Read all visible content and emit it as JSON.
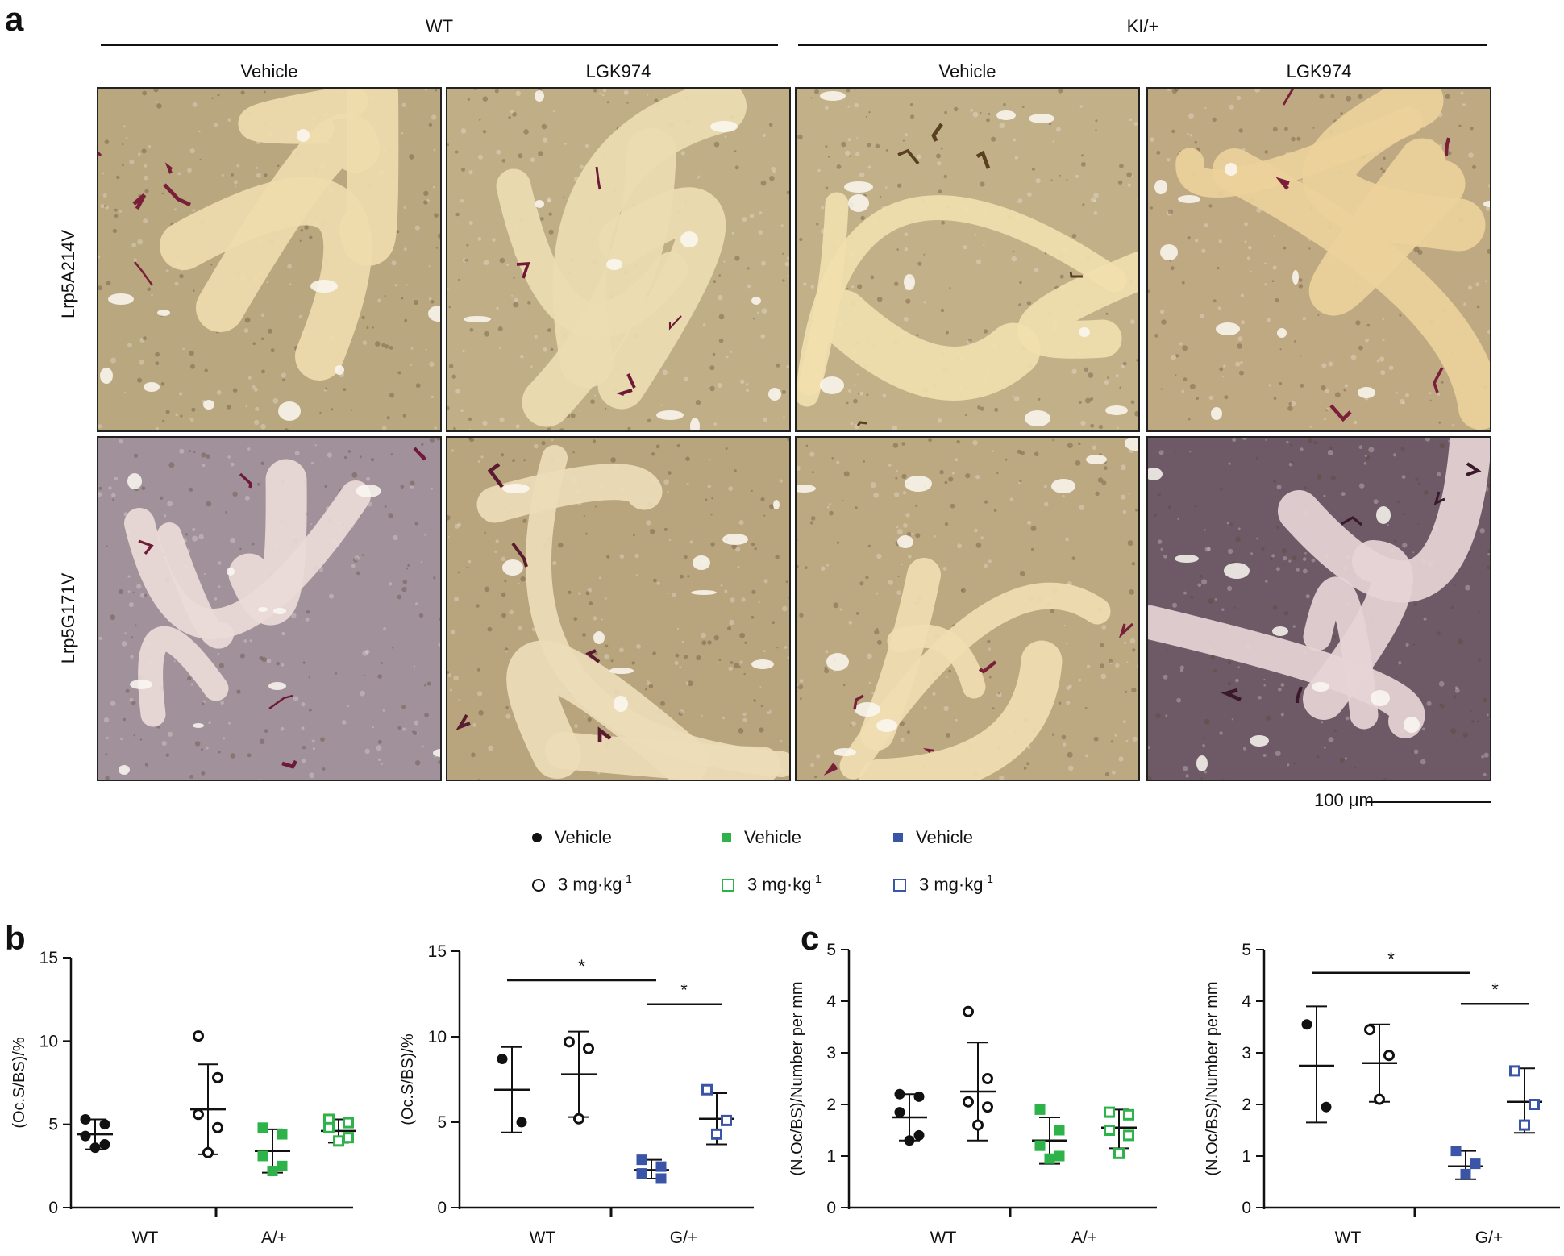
{
  "panel_a": {
    "letter": "a",
    "groups": [
      {
        "label": "WT",
        "conditions": [
          "Vehicle",
          "LGK974"
        ]
      },
      {
        "label": "KI/+",
        "conditions": [
          "Vehicle",
          "LGK974"
        ]
      }
    ],
    "rows": [
      "Lrp5A214V",
      "Lrp5G171V"
    ],
    "scalebar": "100 μm",
    "tile_styles": [
      {
        "bg": "#b9a77f",
        "bone": "#efdcae",
        "stain": "#7a1f3a"
      },
      {
        "bg": "#c0ae86",
        "bone": "#ecdcb2",
        "stain": "#6e1a36"
      },
      {
        "bg": "#c2b089",
        "bone": "#f1dfae",
        "stain": "#5a4020"
      },
      {
        "bg": "#bfa982",
        "bone": "#ecd19a",
        "stain": "#7a1f3a"
      },
      {
        "bg": "#a1919a",
        "bone": "#eadbd8",
        "stain": "#6e1a36"
      },
      {
        "bg": "#b8a57e",
        "bone": "#eddcb8",
        "stain": "#5a1a30"
      },
      {
        "bg": "#bca982",
        "bone": "#f0ddb1",
        "stain": "#7a1f3a"
      },
      {
        "bg": "#6e5a66",
        "bone": "#e6d4d6",
        "stain": "#3a1a2a"
      }
    ]
  },
  "legend": {
    "items": [
      {
        "marker": "filled-circle",
        "color": "#111111",
        "label": "Vehicle"
      },
      {
        "marker": "open-circle",
        "color": "#111111",
        "label": "3 mg·kg",
        "sup": "-1"
      },
      {
        "marker": "filled-square",
        "color": "#2db34a",
        "label": "Vehicle"
      },
      {
        "marker": "open-square",
        "color": "#2db34a",
        "label": "3 mg·kg",
        "sup": "-1"
      },
      {
        "marker": "filled-square",
        "color": "#3a54a8",
        "label": "Vehicle"
      },
      {
        "marker": "open-square",
        "color": "#3a54a8",
        "label": "3 mg·kg",
        "sup": "-1"
      }
    ]
  },
  "panel_b_letter": "b",
  "panel_c_letter": "c",
  "chart_data": [
    {
      "type": "scatter",
      "panel": "b",
      "ylabel": "(Oc.S/BS)/%",
      "ylim": [
        0,
        15
      ],
      "yticks": [
        0,
        5,
        10,
        15
      ],
      "group_labels": [
        "WT",
        "A/+"
      ],
      "groups": [
        {
          "marker": "filled-circle",
          "color": "#111111",
          "values": [
            5.3,
            5.0,
            4.3,
            3.8,
            3.6
          ],
          "mean": 4.4,
          "sd_low": 3.5,
          "sd_high": 5.3
        },
        {
          "marker": "open-circle",
          "color": "#111111",
          "values": [
            10.3,
            7.8,
            5.6,
            4.8,
            3.3
          ],
          "mean": 5.9,
          "sd_low": 3.2,
          "sd_high": 8.6
        },
        {
          "marker": "filled-square",
          "color": "#2db34a",
          "values": [
            4.8,
            4.4,
            3.1,
            2.5,
            2.2
          ],
          "mean": 3.4,
          "sd_low": 2.1,
          "sd_high": 4.7
        },
        {
          "marker": "open-square",
          "color": "#2db34a",
          "values": [
            5.3,
            5.1,
            4.8,
            4.2,
            4.0
          ],
          "mean": 4.6,
          "sd_low": 3.9,
          "sd_high": 5.3
        }
      ],
      "significance": []
    },
    {
      "type": "scatter",
      "panel": "b",
      "ylabel": "(Oc.S/BS)/%",
      "ylim": [
        0,
        15
      ],
      "yticks": [
        0,
        5,
        10,
        15
      ],
      "group_labels": [
        "WT",
        "G/+"
      ],
      "groups": [
        {
          "marker": "filled-circle",
          "color": "#111111",
          "values": [
            8.7,
            5.0
          ],
          "mean": 6.9,
          "sd_low": 4.4,
          "sd_high": 9.4
        },
        {
          "marker": "open-circle",
          "color": "#111111",
          "values": [
            9.7,
            9.3,
            5.2
          ],
          "mean": 7.8,
          "sd_low": 5.3,
          "sd_high": 10.3
        },
        {
          "marker": "filled-square",
          "color": "#3a54a8",
          "values": [
            2.8,
            2.4,
            2.0,
            1.7
          ],
          "mean": 2.2,
          "sd_low": 1.7,
          "sd_high": 2.8
        },
        {
          "marker": "open-square",
          "color": "#3a54a8",
          "values": [
            6.9,
            5.1,
            4.3
          ],
          "mean": 5.2,
          "sd_low": 3.7,
          "sd_high": 6.7
        }
      ],
      "significance": [
        {
          "from": 0,
          "to": 2,
          "y": 13.3,
          "label": "*"
        },
        {
          "from": 2,
          "to": 3,
          "y": 11.9,
          "label": "*"
        }
      ]
    },
    {
      "type": "scatter",
      "panel": "c",
      "ylabel": "(N.Oc/BS)/Number per mm",
      "ylim": [
        0,
        5
      ],
      "yticks": [
        0,
        1,
        2,
        3,
        4,
        5
      ],
      "group_labels": [
        "WT",
        "A/+"
      ],
      "groups": [
        {
          "marker": "filled-circle",
          "color": "#111111",
          "values": [
            2.2,
            2.15,
            1.85,
            1.4,
            1.3
          ],
          "mean": 1.75,
          "sd_low": 1.3,
          "sd_high": 2.2
        },
        {
          "marker": "open-circle",
          "color": "#111111",
          "values": [
            3.8,
            2.5,
            2.05,
            1.95,
            1.6
          ],
          "mean": 2.25,
          "sd_low": 1.3,
          "sd_high": 3.2
        },
        {
          "marker": "filled-square",
          "color": "#2db34a",
          "values": [
            1.9,
            1.5,
            1.2,
            1.0,
            0.95
          ],
          "mean": 1.3,
          "sd_low": 0.85,
          "sd_high": 1.75
        },
        {
          "marker": "open-square",
          "color": "#2db34a",
          "values": [
            1.85,
            1.8,
            1.5,
            1.4,
            1.05
          ],
          "mean": 1.55,
          "sd_low": 1.15,
          "sd_high": 1.9
        }
      ],
      "significance": []
    },
    {
      "type": "scatter",
      "panel": "c",
      "ylabel": "(N.Oc/BS)/Number per mm",
      "ylim": [
        0,
        5
      ],
      "yticks": [
        0,
        1,
        2,
        3,
        4,
        5
      ],
      "group_labels": [
        "WT",
        "G/+"
      ],
      "groups": [
        {
          "marker": "filled-circle",
          "color": "#111111",
          "values": [
            3.55,
            1.95
          ],
          "mean": 2.75,
          "sd_low": 1.65,
          "sd_high": 3.9
        },
        {
          "marker": "open-circle",
          "color": "#111111",
          "values": [
            3.45,
            2.95,
            2.1
          ],
          "mean": 2.8,
          "sd_low": 2.05,
          "sd_high": 3.55
        },
        {
          "marker": "filled-square",
          "color": "#3a54a8",
          "values": [
            1.1,
            0.85,
            0.65
          ],
          "mean": 0.8,
          "sd_low": 0.55,
          "sd_high": 1.1
        },
        {
          "marker": "open-square",
          "color": "#3a54a8",
          "values": [
            2.65,
            2.0,
            1.6
          ],
          "mean": 2.05,
          "sd_low": 1.45,
          "sd_high": 2.7
        }
      ],
      "significance": [
        {
          "from": 0,
          "to": 2,
          "y": 4.55,
          "label": "*"
        },
        {
          "from": 2,
          "to": 3,
          "y": 3.95,
          "label": "*"
        }
      ]
    }
  ]
}
